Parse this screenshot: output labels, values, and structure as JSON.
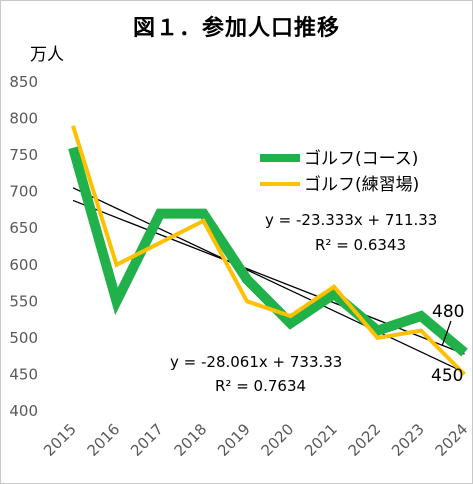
{
  "chart_data": {
    "type": "line",
    "title": "図１．参加人口推移",
    "ylabel": "万人",
    "xlabel": "",
    "x": [
      "2015",
      "2016",
      "2017",
      "2018",
      "2019",
      "2020",
      "2021",
      "2022",
      "2023",
      "2024"
    ],
    "ylim": [
      400,
      850
    ],
    "yticks": [
      "400",
      "450",
      "500",
      "550",
      "600",
      "650",
      "700",
      "750",
      "800",
      "850"
    ],
    "grid": false,
    "legend_position": "right",
    "series": [
      {
        "name": "ゴルフ(コース)",
        "color": "#21b14a",
        "values": [
          760,
          550,
          670,
          670,
          580,
          520,
          560,
          510,
          530,
          480
        ]
      },
      {
        "name": "ゴルフ(練習場)",
        "color": "#ffc000",
        "values": [
          790,
          600,
          630,
          660,
          550,
          530,
          570,
          500,
          510,
          450
        ]
      }
    ],
    "trendlines": [
      {
        "equation": "y = -23.333x + 711.33",
        "r2": "R² = 0.6343",
        "slope": -23.333,
        "intercept": 711.33
      },
      {
        "equation": "y = -28.061x + 733.33",
        "r2": "R² = 0.7634",
        "slope": -28.061,
        "intercept": 733.33
      }
    ],
    "end_labels": [
      "480",
      "450"
    ]
  }
}
